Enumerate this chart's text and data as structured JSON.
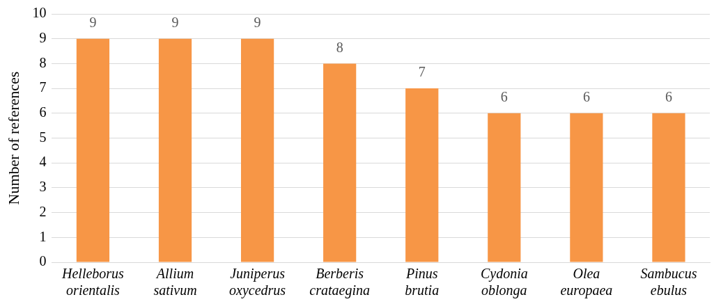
{
  "chart_data": {
    "type": "bar",
    "ylabel": "Number of references",
    "categories": [
      "Helleborus orientalis",
      "Allium sativum",
      "Juniperus oxycedrus",
      "Berberis crataegina",
      "Pinus brutia",
      "Cydonia oblonga",
      "Olea europaea",
      "Sambucus ebulus"
    ],
    "values": [
      9,
      9,
      9,
      8,
      7,
      6,
      6,
      6
    ],
    "color": "#f79646",
    "ylim": [
      0,
      10
    ],
    "yticks": [
      0,
      1,
      2,
      3,
      4,
      5,
      6,
      7,
      8,
      9,
      10
    ],
    "grid": "y",
    "data_labels": true,
    "legend": false
  }
}
